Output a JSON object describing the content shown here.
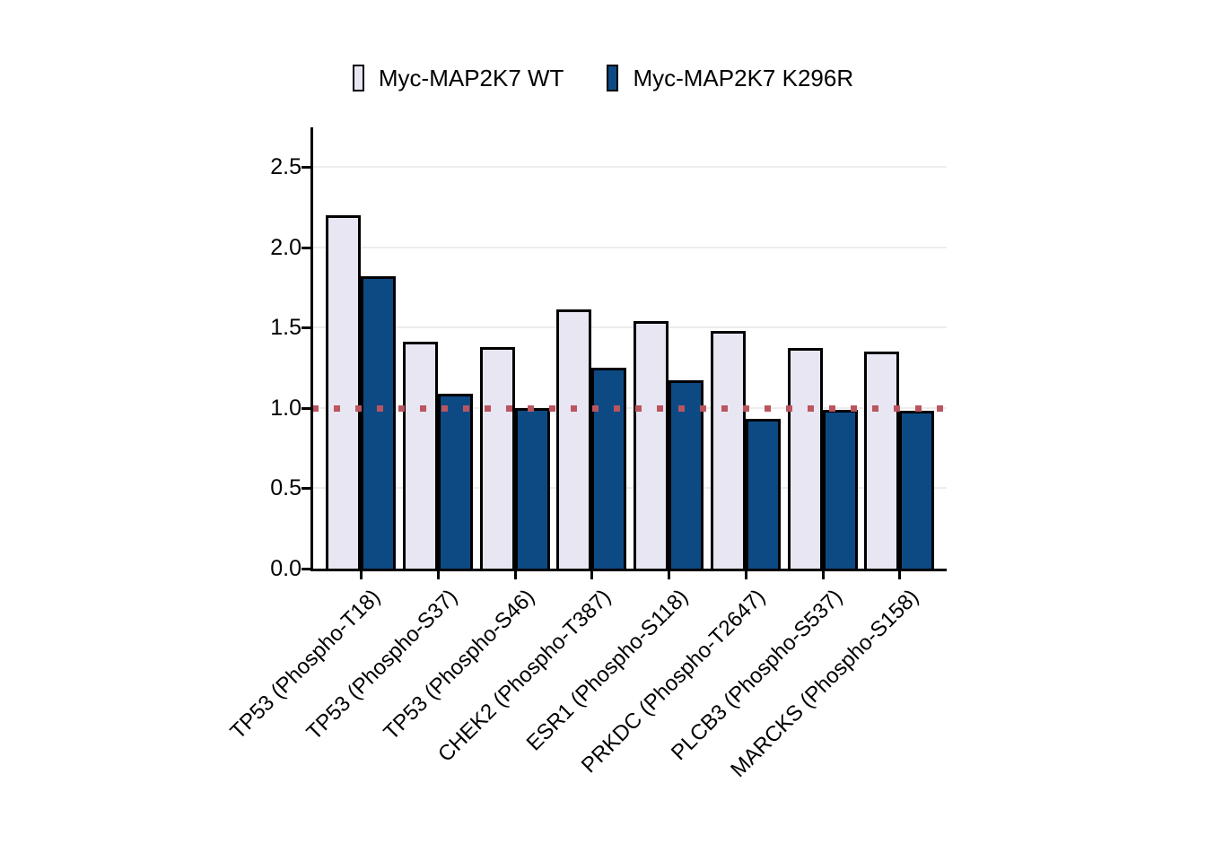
{
  "chart_data": {
    "type": "bar",
    "grouped": true,
    "categories": [
      "TP53 (Phospho-T18)",
      "TP53 (Phospho-S37)",
      "TP53 (Phospho-S46)",
      "CHEK2 (Phospho-T387)",
      "ESR1 (Phospho-S118)",
      "PRKDC (Phospho-T2647)",
      "PLCB3 (Phospho-S537)",
      "MARCKS (Phospho-S158)"
    ],
    "series": [
      {
        "name": "Myc-MAP2K7 WT",
        "color": "#E7E6F2",
        "values": [
          2.2,
          1.41,
          1.38,
          1.61,
          1.54,
          1.48,
          1.37,
          1.35
        ]
      },
      {
        "name": "Myc-MAP2K7 K296R",
        "color": "#0D4A84",
        "values": [
          1.82,
          1.09,
          1.0,
          1.25,
          1.17,
          0.93,
          0.99,
          0.98
        ]
      }
    ],
    "yticks": [
      "0.0",
      "0.5",
      "1.0",
      "1.5",
      "2.0",
      "2.5"
    ],
    "ylim": [
      0,
      2.75
    ],
    "reference_line": {
      "value": 1.0,
      "color": "#BA5560",
      "style": "dotted"
    },
    "bar_border_color": "#000000",
    "axis_color": "#000000",
    "gridline_color": "#EDEDED",
    "legend_position": "top"
  }
}
